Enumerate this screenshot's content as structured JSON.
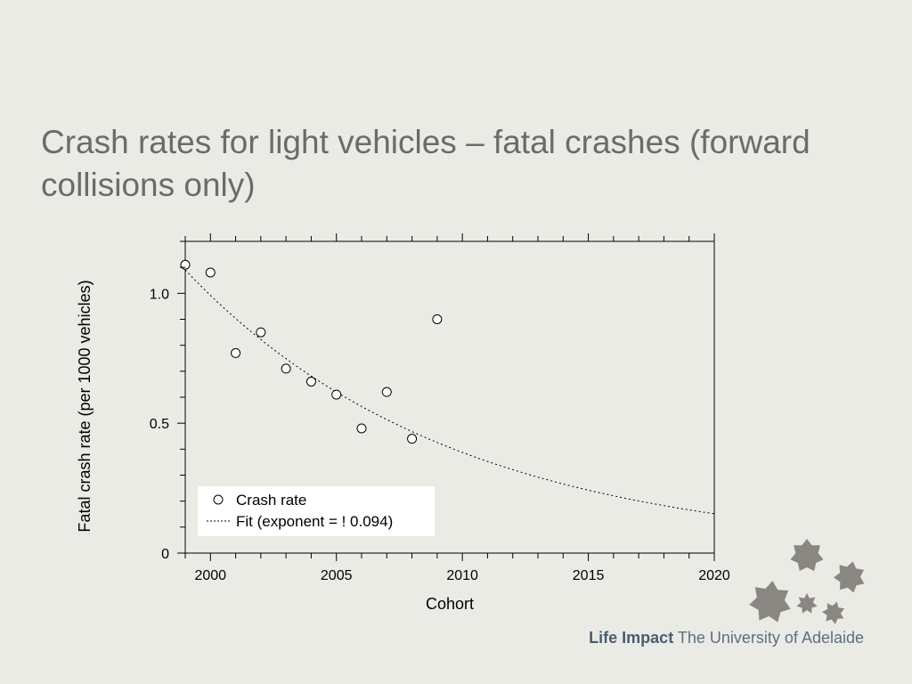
{
  "slide": {
    "title": "Crash rates for light vehicles – fatal crashes (forward collisions only)"
  },
  "footer": {
    "brand": "Life Impact",
    "university": "The University of Adelaide"
  },
  "colors": {
    "background": "#ebebe6",
    "title": "#6b6b6b",
    "footer": "#5d6f80",
    "stars": "#8a8782"
  },
  "logo_icon": "star-cluster-icon",
  "chart_data": {
    "type": "scatter",
    "xlabel": "Cohort",
    "ylabel": "Fatal crash rate (per 1000 vehicles)",
    "xlim": [
      1999,
      2020
    ],
    "ylim": [
      0,
      1.2
    ],
    "xticks": [
      2000,
      2005,
      2010,
      2015,
      2020
    ],
    "yticks": [
      0,
      0.5,
      1.0
    ],
    "ytick_labels": [
      "0",
      "0.5",
      "1.0"
    ],
    "grid": false,
    "legend_position": "bottom-left",
    "series": [
      {
        "name": "Crash rate",
        "marker": "open-circle",
        "x": [
          1999,
          2000,
          2001,
          2002,
          2003,
          2004,
          2005,
          2006,
          2007,
          2008,
          2009
        ],
        "y": [
          1.11,
          1.08,
          0.77,
          0.85,
          0.71,
          0.66,
          0.61,
          0.48,
          0.62,
          0.44,
          0.9
        ]
      },
      {
        "name": "Fit (exponent = ! 0.094)",
        "style": "dotted-line",
        "fit": {
          "form": "exponential",
          "x0": 1999,
          "y0": 1.09,
          "rate": -0.094
        }
      }
    ]
  }
}
